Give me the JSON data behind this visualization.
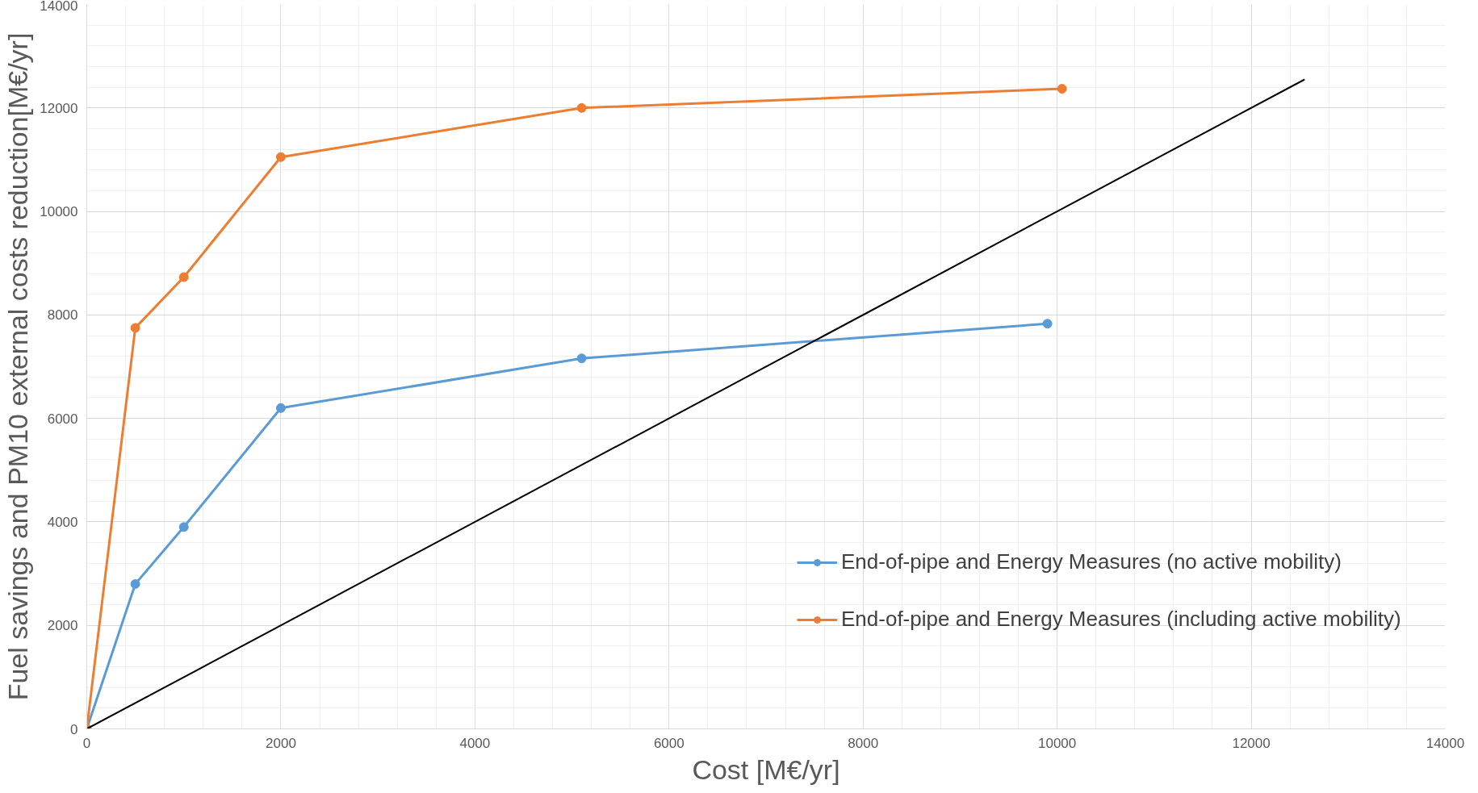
{
  "chart_data": {
    "type": "line",
    "xlabel": "Cost [M€/yr]",
    "ylabel": "Fuel savings and PM10 external costs reduction[M€/yr]",
    "xlim": [
      0,
      14000
    ],
    "ylim": [
      0,
      14000
    ],
    "xticks": [
      0,
      2000,
      4000,
      6000,
      8000,
      10000,
      12000,
      14000
    ],
    "yticks": [
      0,
      2000,
      4000,
      6000,
      8000,
      10000,
      12000,
      14000
    ],
    "grid": true,
    "legend": "bottom right",
    "marker": "circle",
    "line_style": "solid",
    "series": [
      {
        "name": "End-of-pipe and Energy Measures (no active mobility)",
        "color": "#5b9bd5",
        "x": [
          0,
          500,
          1000,
          2000,
          5100,
          9900
        ],
        "values": [
          0,
          2800,
          3900,
          6200,
          7160,
          7830
        ]
      },
      {
        "name": "End-of-pipe and Energy Measures (including active mobility)",
        "color": "#ed7d31",
        "x": [
          0,
          500,
          1000,
          2000,
          5100,
          10050
        ],
        "values": [
          0,
          7750,
          8730,
          11050,
          12000,
          12370
        ]
      },
      {
        "color": "#000000",
        "marker": "none",
        "x": [
          0,
          12550
        ],
        "values": [
          0,
          12550
        ]
      }
    ]
  }
}
